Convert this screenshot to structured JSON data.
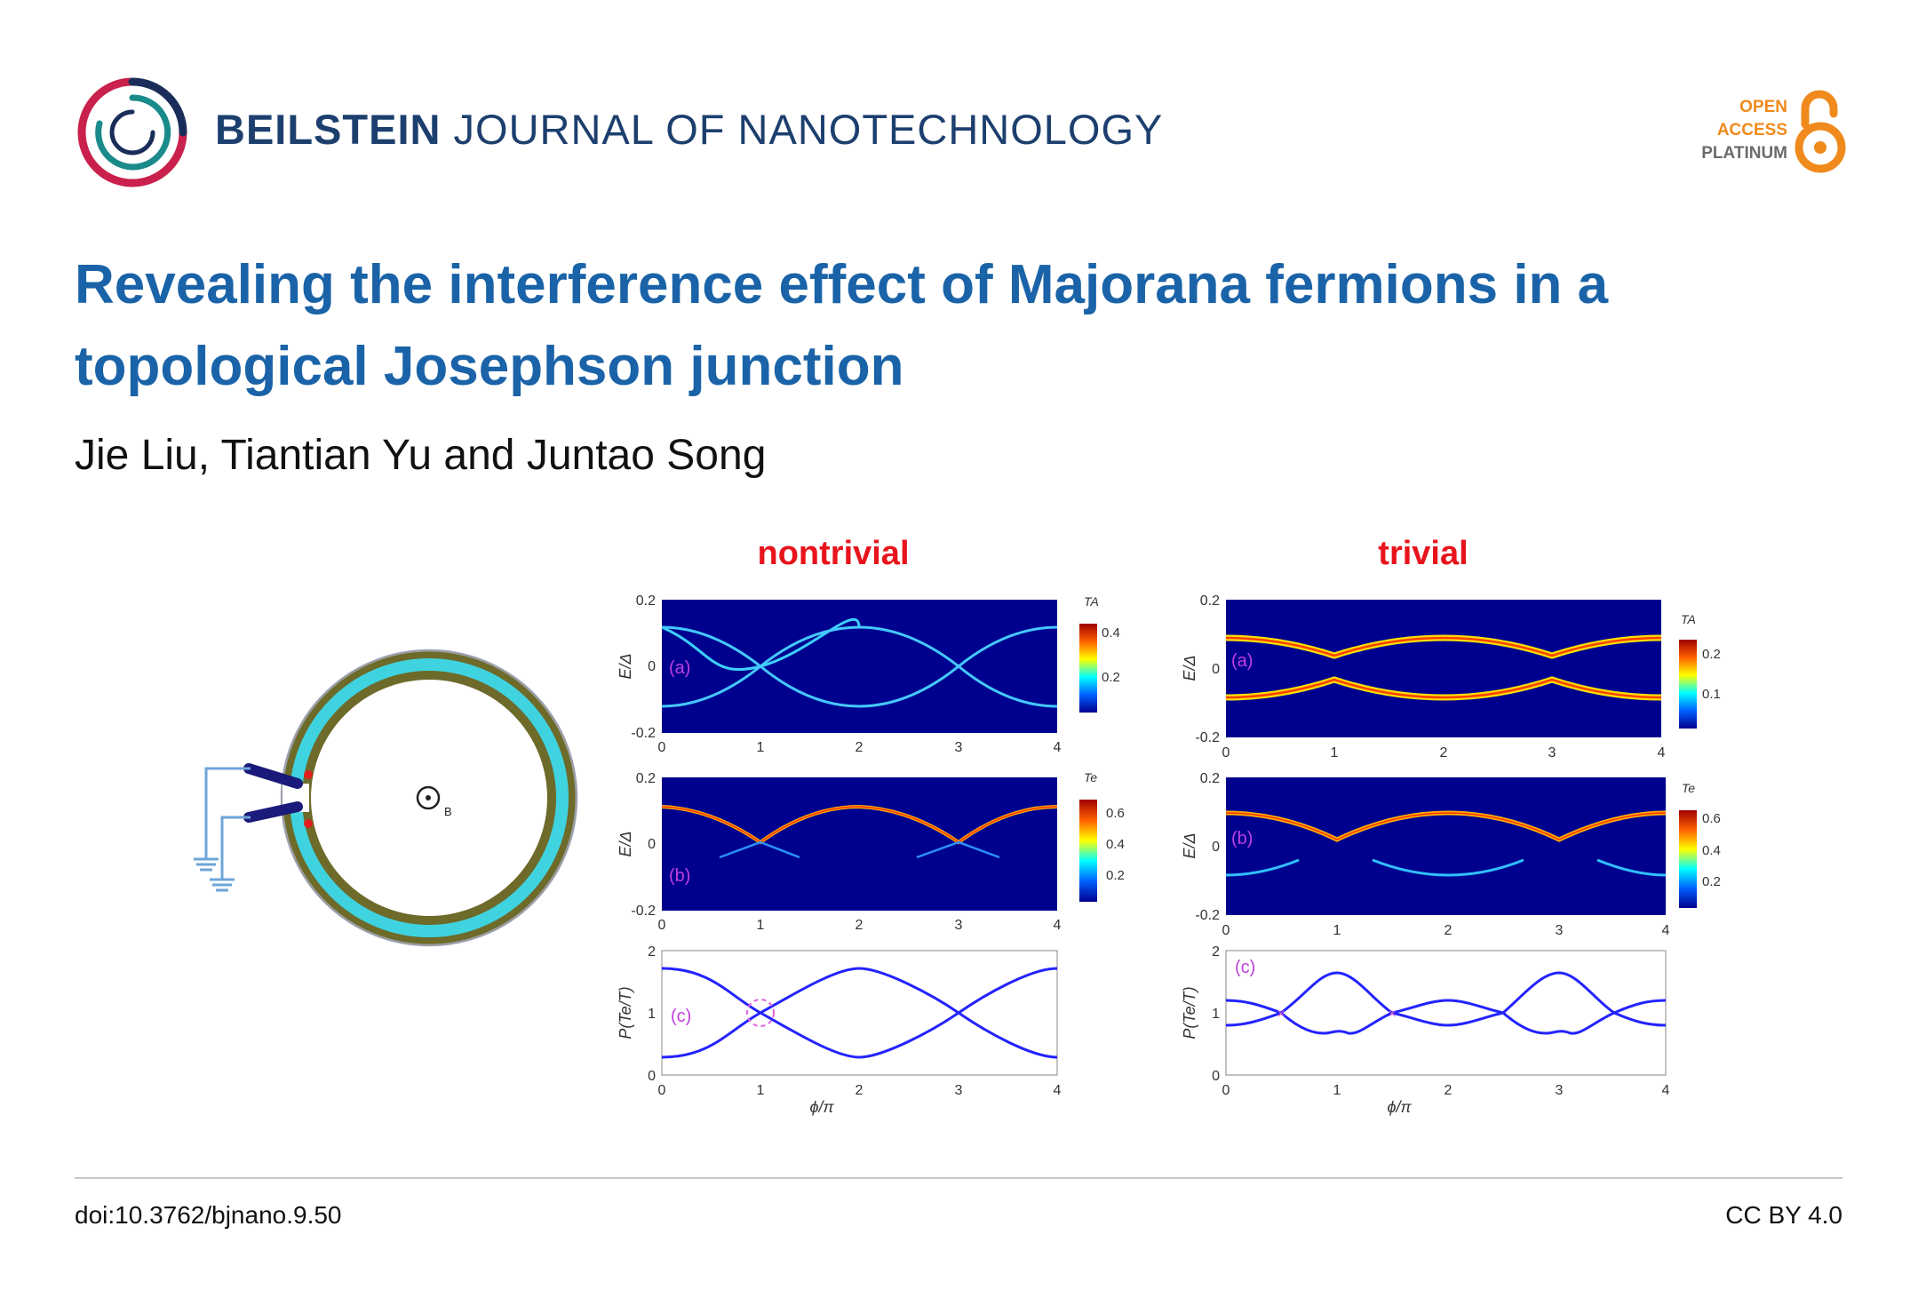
{
  "header": {
    "journal_bold": "BEILSTEIN",
    "journal_rest": " JOURNAL OF NANOTECHNOLOGY",
    "open_access": [
      "OPEN",
      "ACCESS",
      "PLATINUM"
    ]
  },
  "article": {
    "title": "Revealing the interference effect of Majorana fermions in a topological Josephson junction",
    "authors": "Jie Liu, Tiantian Yu and Juntao Song"
  },
  "figure": {
    "labels": {
      "nontrivial": "nontrivial",
      "trivial": "trivial",
      "field_symbol": "B",
      "panel_a": "(a)",
      "panel_b": "(b)",
      "panel_c": "(c)",
      "ylabel_E": "E/Δ",
      "ylabel_P": "P(Te/T)",
      "xlabel": "ϕ/π",
      "cbar_TA": "TA",
      "cbar_Te": "Te"
    },
    "colors": {
      "heading": "#e8141c",
      "panel_label": "#c040e0",
      "curve": "#2323ff",
      "map_bg": "#00008f"
    }
  },
  "chart_data": [
    {
      "type": "heatmap",
      "name": "nontrivial (a)",
      "x": [
        0,
        4
      ],
      "xticks": [
        "0",
        "1",
        "2",
        "3",
        "4"
      ],
      "ylim": [
        -0.2,
        0.2
      ],
      "yticks": [
        "-0.2",
        "0",
        "0.2"
      ],
      "ylabel": "E/Δ",
      "colorbar_label": "TA",
      "colorbar_ticks": [
        "0.2",
        "0.4"
      ],
      "annotation": "(a)"
    },
    {
      "type": "heatmap",
      "name": "nontrivial (b)",
      "x": [
        0,
        4
      ],
      "xticks": [
        "0",
        "1",
        "2",
        "3",
        "4"
      ],
      "ylim": [
        -0.2,
        0.2
      ],
      "yticks": [
        "-0.2",
        "0",
        "0.2"
      ],
      "ylabel": "E/Δ",
      "colorbar_label": "Te",
      "colorbar_ticks": [
        "0.2",
        "0.4",
        "0.6"
      ],
      "annotation": "(b)"
    },
    {
      "type": "line",
      "name": "nontrivial (c)",
      "xlim": [
        0,
        4
      ],
      "xticks": [
        "0",
        "1",
        "2",
        "3",
        "4"
      ],
      "ylim": [
        0,
        2
      ],
      "yticks": [
        "0",
        "1",
        "2"
      ],
      "xlabel": "ϕ/π",
      "ylabel": "P(Te/T)",
      "annotation": "(c)",
      "series": [
        {
          "x": [
            0,
            0.5,
            1,
            1.5,
            2,
            2.5,
            3,
            3.5,
            4
          ],
          "y": [
            1.7,
            1.5,
            1.0,
            0.5,
            0.3,
            0.5,
            1.0,
            1.5,
            1.7
          ]
        },
        {
          "x": [
            0,
            0.5,
            1,
            1.5,
            2,
            2.5,
            3,
            3.5,
            4
          ],
          "y": [
            0.3,
            0.5,
            1.0,
            1.5,
            1.7,
            1.5,
            1.0,
            0.5,
            0.3
          ]
        }
      ]
    },
    {
      "type": "heatmap",
      "name": "trivial (a)",
      "x": [
        0,
        4
      ],
      "xticks": [
        "0",
        "1",
        "2",
        "3",
        "4"
      ],
      "ylim": [
        -0.2,
        0.2
      ],
      "yticks": [
        "-0.2",
        "0",
        "0.2"
      ],
      "ylabel": "E/Δ",
      "colorbar_label": "TA",
      "colorbar_ticks": [
        "0.1",
        "0.2"
      ],
      "annotation": "(a)"
    },
    {
      "type": "heatmap",
      "name": "trivial (b)",
      "x": [
        0,
        4
      ],
      "xticks": [
        "0",
        "1",
        "2",
        "3",
        "4"
      ],
      "ylim": [
        -0.2,
        0.2
      ],
      "yticks": [
        "-0.2",
        "0",
        "0.2"
      ],
      "ylabel": "E/Δ",
      "colorbar_label": "Te",
      "colorbar_ticks": [
        "0.2",
        "0.4",
        "0.6"
      ],
      "annotation": "(b)"
    },
    {
      "type": "line",
      "name": "trivial (c)",
      "xlim": [
        0,
        4
      ],
      "xticks": [
        "0",
        "1",
        "2",
        "3",
        "4"
      ],
      "ylim": [
        0,
        2
      ],
      "yticks": [
        "0",
        "1",
        "2"
      ],
      "xlabel": "ϕ/π",
      "ylabel": "P(Te/T)",
      "annotation": "(c)",
      "series": [
        {
          "x": [
            0,
            0.25,
            0.5,
            0.75,
            1,
            1.25,
            1.5,
            1.75,
            2,
            2.25,
            2.5,
            2.75,
            3,
            3.25,
            3.5,
            3.75,
            4
          ],
          "y": [
            1.2,
            1.15,
            1.0,
            1.35,
            1.6,
            1.35,
            1.0,
            1.1,
            1.2,
            1.1,
            1.0,
            1.35,
            1.6,
            1.35,
            1.0,
            1.15,
            1.2
          ]
        },
        {
          "x": [
            0,
            0.25,
            0.5,
            0.75,
            1,
            1.25,
            1.5,
            1.75,
            2,
            2.25,
            2.5,
            2.75,
            3,
            3.25,
            3.5,
            3.75,
            4
          ],
          "y": [
            0.8,
            0.9,
            1.0,
            0.65,
            0.7,
            0.65,
            1.0,
            0.9,
            0.8,
            0.9,
            1.0,
            0.65,
            0.7,
            0.65,
            1.0,
            0.9,
            0.8
          ]
        }
      ]
    }
  ],
  "footer": {
    "doi": "doi:10.3762/bjnano.9.50",
    "license": "CC BY 4.0"
  }
}
